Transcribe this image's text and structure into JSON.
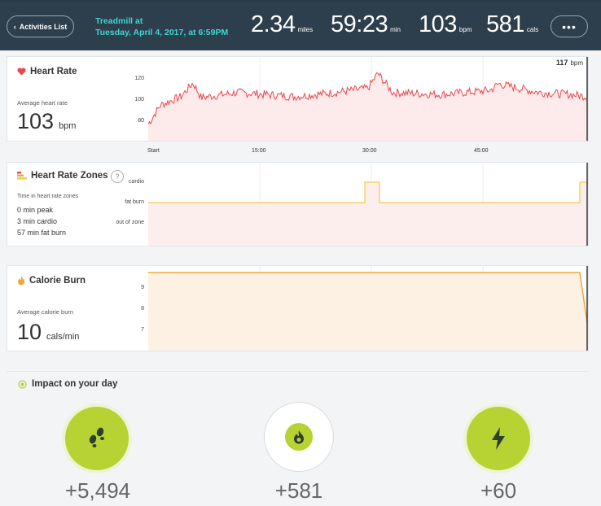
{
  "header": {
    "back_label": "Activities List",
    "workout_name": "Treadmill at",
    "workout_time": "Tuesday, April 4, 2017, at 6:59PM",
    "stats": [
      {
        "value": "2.34",
        "unit": "miles"
      },
      {
        "value": "59:23",
        "unit": "min"
      },
      {
        "value": "103",
        "unit": "bpm"
      },
      {
        "value": "581",
        "unit": "cals"
      }
    ],
    "more_label": "•••"
  },
  "heart_rate": {
    "title": "Heart Rate",
    "avg_label": "Average heart rate",
    "avg_value": "103",
    "avg_unit": "bpm",
    "max_value": "117",
    "max_unit": "bpm",
    "y_ticks": [
      "120",
      "100",
      "80"
    ],
    "x_ticks": [
      "Start",
      "15:00",
      "30:00",
      "45:00"
    ]
  },
  "zones": {
    "title": "Heart Rate Zones",
    "help": "?",
    "sub_label": "Time in heart rate zones",
    "lines": [
      "0 min peak",
      "3 min cardio",
      "57 min fat burn"
    ],
    "y_ticks": [
      "cardio",
      "fat burn",
      "out of zone"
    ]
  },
  "calories": {
    "title": "Calorie Burn",
    "avg_label": "Average calorie burn",
    "avg_value": "10",
    "avg_unit": "cals/min",
    "y_ticks": [
      "9",
      "8",
      "7"
    ]
  },
  "impact": {
    "title": "Impact on your day",
    "items": [
      {
        "icon": "footsteps-icon",
        "value": "+5,494"
      },
      {
        "icon": "flame-icon",
        "value": "+581"
      },
      {
        "icon": "bolt-icon",
        "value": "+60"
      }
    ]
  },
  "colors": {
    "header_bg": "#2d3e4c",
    "accent_teal": "#3fd6d0",
    "heart_red": "#e6494e",
    "zone_yellow": "#f2c94c",
    "calorie_orange": "#f0a640",
    "impact_green": "#b6d233"
  }
}
